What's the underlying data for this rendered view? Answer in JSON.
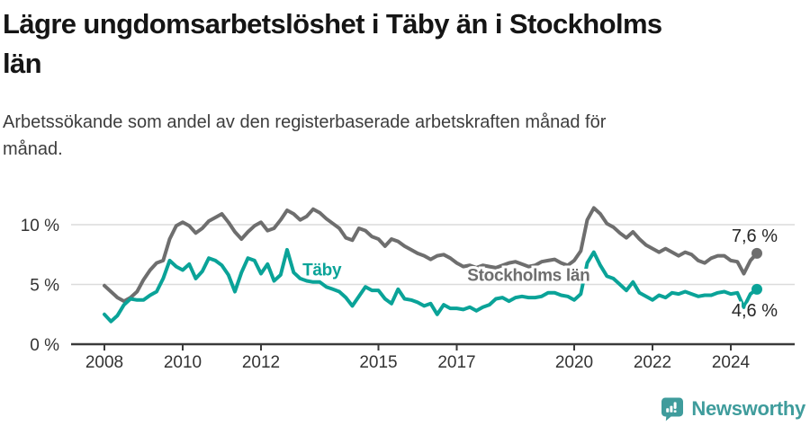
{
  "header": {
    "title_lines": [
      "Lägre ungdomsarbetslöshet i Täby än i Stockholms",
      "län"
    ],
    "subtitle_lines": [
      "Arbetssökande som andel av den registerbaserade arbetskraften månad för",
      "månad."
    ]
  },
  "footer": {
    "brand": "Newsworthy",
    "logo_icon": "newsworthy-speech-bubble-chart-icon"
  },
  "colors": {
    "taby": "#0aa398",
    "stockholm": "#6e6e6e",
    "grid": "#dcdcdc",
    "axis": "#3a3a3a",
    "value_text": "#262626",
    "brand": "#3f9c9c"
  },
  "chart_data": {
    "type": "line",
    "title": "Lägre ungdomsarbetslöshet i Täby än i Stockholms län",
    "subtitle": "Arbetssökande som andel av den registerbaserade arbetskraften månad för månad.",
    "unit": "%",
    "x_start": 2008.0,
    "x_step_years": 0.1666667,
    "xlim": [
      2007.2,
      2025.6
    ],
    "ylim": [
      0,
      12
    ],
    "grid": "horizontal",
    "x_ticks": [
      {
        "value": 2008,
        "label": "2008"
      },
      {
        "value": 2010,
        "label": "2010"
      },
      {
        "value": 2012,
        "label": "2012"
      },
      {
        "value": 2015,
        "label": "2015"
      },
      {
        "value": 2017,
        "label": "2017"
      },
      {
        "value": 2020,
        "label": "2020"
      },
      {
        "value": 2022,
        "label": "2022"
      },
      {
        "value": 2024,
        "label": "2024"
      }
    ],
    "y_ticks": [
      {
        "value": 0,
        "label": "0 %"
      },
      {
        "value": 5,
        "label": "5 %"
      },
      {
        "value": 10,
        "label": "10 %"
      }
    ],
    "series": [
      {
        "name": "Stockholms län",
        "color": "#6e6e6e",
        "end_label": "7,6 %",
        "end_value": 7.6,
        "end_label_position": "above",
        "label_anchor": {
          "x_year": 2017.27,
          "y_pct": 5.3
        },
        "values": [
          4.9,
          4.4,
          3.9,
          3.6,
          3.9,
          4.4,
          5.4,
          6.2,
          6.8,
          7.0,
          8.8,
          9.9,
          10.2,
          9.9,
          9.3,
          9.7,
          10.3,
          10.6,
          10.9,
          10.2,
          9.4,
          8.8,
          9.4,
          9.9,
          10.2,
          9.5,
          9.7,
          10.4,
          11.2,
          10.9,
          10.4,
          10.7,
          11.3,
          11.0,
          10.5,
          10.1,
          9.7,
          8.9,
          8.7,
          9.7,
          9.5,
          9.0,
          8.8,
          8.2,
          8.8,
          8.6,
          8.2,
          7.9,
          7.6,
          7.4,
          7.1,
          7.4,
          7.5,
          7.2,
          6.8,
          6.5,
          6.6,
          6.4,
          6.6,
          6.5,
          6.4,
          6.6,
          6.8,
          6.9,
          6.7,
          6.5,
          6.6,
          6.9,
          7.0,
          7.1,
          6.8,
          6.6,
          7.0,
          7.8,
          10.4,
          11.4,
          10.9,
          10.1,
          9.8,
          9.3,
          8.9,
          9.4,
          8.8,
          8.3,
          8.0,
          7.7,
          8.0,
          7.7,
          7.4,
          7.7,
          7.5,
          7.0,
          6.8,
          7.2,
          7.4,
          7.4,
          7.0,
          6.9,
          5.9,
          7.0,
          7.6
        ]
      },
      {
        "name": "Täby",
        "color": "#0aa398",
        "end_label": "4,6 %",
        "end_value": 4.6,
        "end_label_position": "below",
        "label_anchor": {
          "x_year": 2013.06,
          "y_pct": 5.75
        },
        "values": [
          2.5,
          1.9,
          2.4,
          3.3,
          3.8,
          3.7,
          3.7,
          4.1,
          4.4,
          5.5,
          7.0,
          6.5,
          6.2,
          6.7,
          5.5,
          6.1,
          7.2,
          7.0,
          6.6,
          5.8,
          4.4,
          6.0,
          7.2,
          7.0,
          5.9,
          6.7,
          5.3,
          5.8,
          7.9,
          6.0,
          5.5,
          5.3,
          5.2,
          5.2,
          4.8,
          4.6,
          4.4,
          3.9,
          3.2,
          4.0,
          4.8,
          4.5,
          4.5,
          3.8,
          3.4,
          4.6,
          3.8,
          3.7,
          3.5,
          3.2,
          3.4,
          2.5,
          3.3,
          3.0,
          3.0,
          2.9,
          3.1,
          2.8,
          3.1,
          3.3,
          3.8,
          3.9,
          3.6,
          3.9,
          4.0,
          3.9,
          3.9,
          4.0,
          4.3,
          4.3,
          4.1,
          4.0,
          3.7,
          4.2,
          6.8,
          7.7,
          6.6,
          5.7,
          5.5,
          5.0,
          4.5,
          5.2,
          4.3,
          4.0,
          3.7,
          4.1,
          3.9,
          4.3,
          4.2,
          4.4,
          4.2,
          4.0,
          4.1,
          4.1,
          4.3,
          4.4,
          4.2,
          4.3,
          3.1,
          4.2,
          4.6
        ]
      }
    ],
    "legend_position": "inline-labels"
  }
}
